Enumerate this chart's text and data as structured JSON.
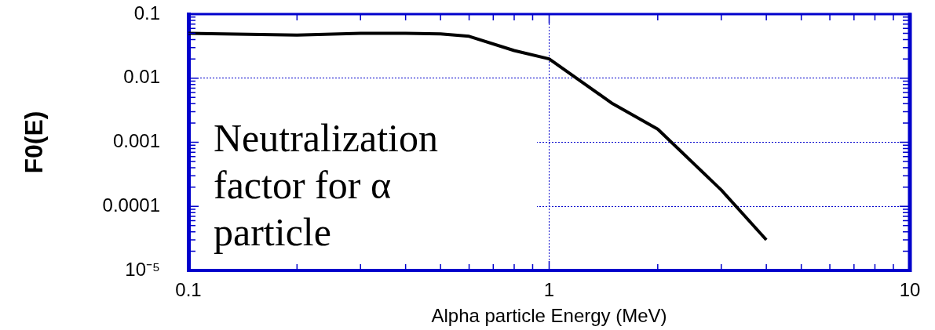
{
  "chart_data": {
    "type": "line",
    "xlabel": "Alpha particle Energy (MeV)",
    "ylabel": "F0(E)",
    "annotations": [
      "Neutralization factor for α particle"
    ],
    "x": [
      0.1,
      0.2,
      0.3,
      0.4,
      0.5,
      0.6,
      0.8,
      1,
      1.5,
      2,
      3,
      4
    ],
    "values": [
      0.05,
      0.047,
      0.05,
      0.05,
      0.049,
      0.045,
      0.027,
      0.02,
      0.004,
      0.0016,
      0.00018,
      3e-05
    ],
    "color": "#000000",
    "log": "xy",
    "xlim": [
      0.1,
      10
    ],
    "ylim": [
      1e-05,
      0.1
    ],
    "xticks": [
      0.1,
      1,
      10
    ],
    "yticks": [
      0.1,
      0.01,
      0.001,
      0.0001,
      {
        "value": 1e-05,
        "label": "10⁻⁵"
      }
    ],
    "grid": true
  }
}
